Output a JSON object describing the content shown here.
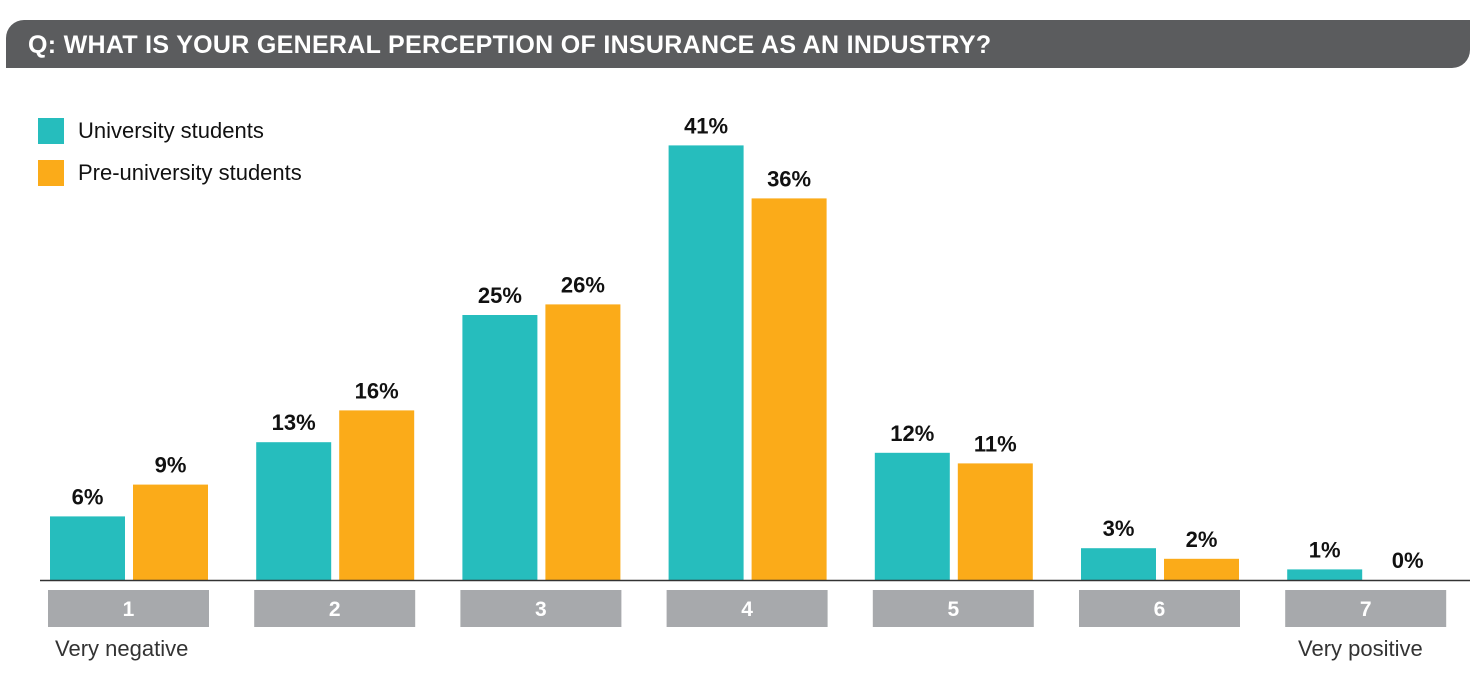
{
  "chart_data": {
    "type": "bar",
    "title": "Q: WHAT IS YOUR GENERAL PERCEPTION OF INSURANCE AS AN INDUSTRY?",
    "categories": [
      "1",
      "2",
      "3",
      "4",
      "5",
      "6",
      "7"
    ],
    "series": [
      {
        "name": "University students",
        "color": "#26bdbd",
        "values": [
          6,
          13,
          25,
          41,
          12,
          3,
          1
        ],
        "labels": [
          "6%",
          "13%",
          "25%",
          "41%",
          "12%",
          "3%",
          "1%"
        ]
      },
      {
        "name": "Pre-university students",
        "color": "#fbab19",
        "values": [
          9,
          16,
          26,
          36,
          11,
          2,
          0
        ],
        "labels": [
          "9%",
          "16%",
          "26%",
          "36%",
          "11%",
          "2%",
          "0%"
        ]
      }
    ],
    "scale_labels": {
      "low": "Very negative",
      "high": "Very positive"
    },
    "ylim": [
      0,
      41
    ],
    "legend": "top-left",
    "grid": false
  }
}
